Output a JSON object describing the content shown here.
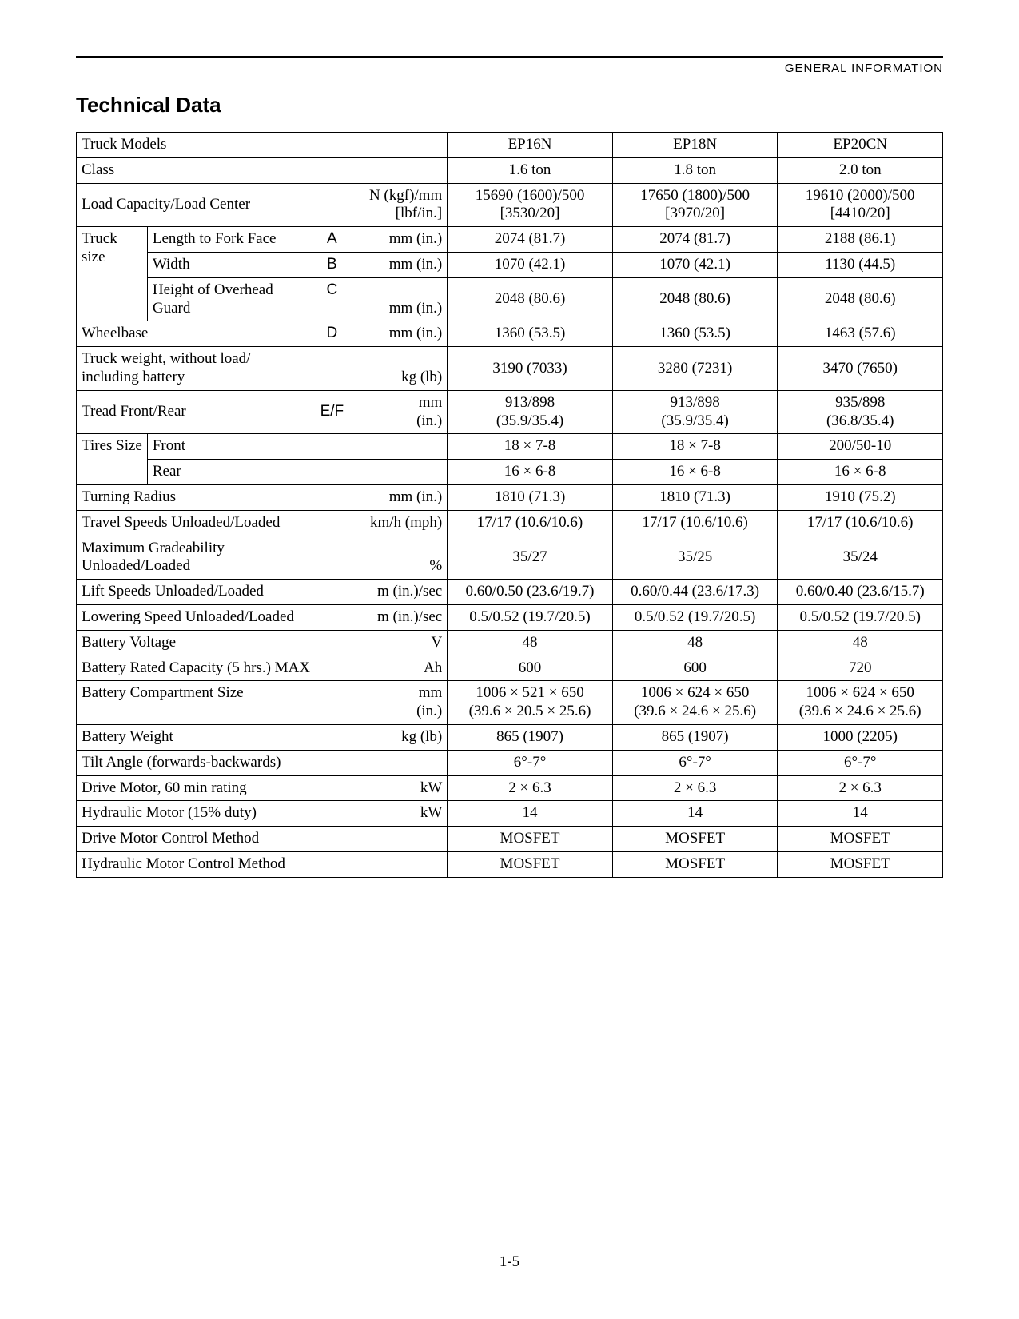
{
  "page": {
    "header_right": "GENERAL  INFORMATION",
    "title": "Technical Data",
    "footer": "1-5",
    "background_color": "#ffffff",
    "text_color": "#000000",
    "rule_color": "#000000",
    "model_names": [
      "EP16N",
      "EP18N",
      "EP20CN"
    ]
  },
  "rows": {
    "truck_models": {
      "label": "Truck Models",
      "v": [
        "EP16N",
        "EP18N",
        "EP20CN"
      ]
    },
    "class": {
      "label": "Class",
      "v": [
        "1.6 ton",
        "1.8 ton",
        "2.0 ton"
      ]
    },
    "load_capacity": {
      "label": "Load Capacity/Load Center",
      "unit1": "N (kgf)/mm",
      "unit2": "[lbf/in.]",
      "v1": [
        "15690 (1600)/500",
        "17650 (1800)/500",
        "19610 (2000)/500"
      ],
      "v2": [
        "[3530/20]",
        "[3970/20]",
        "[4410/20]"
      ]
    },
    "truck_size_label": "Truck size",
    "length_fork": {
      "label": "Length to Fork Face",
      "code": "A",
      "unit": "mm (in.)",
      "v": [
        "2074 (81.7)",
        "2074 (81.7)",
        "2188 (86.1)"
      ]
    },
    "width": {
      "label": "Width",
      "code": "B",
      "unit": "mm (in.)",
      "v": [
        "1070 (42.1)",
        "1070 (42.1)",
        "1130 (44.5)"
      ]
    },
    "height_guard": {
      "label": "Height of Overhead Guard",
      "code": "C",
      "unit": "mm (in.)",
      "v": [
        "2048 (80.6)",
        "2048 (80.6)",
        "2048 (80.6)"
      ]
    },
    "wheelbase": {
      "label": "Wheelbase",
      "code": "D",
      "unit": "mm (in.)",
      "v": [
        "1360 (53.5)",
        "1360 (53.5)",
        "1463 (57.6)"
      ]
    },
    "truck_weight": {
      "label1": "Truck weight, without load/",
      "label2": "including battery",
      "unit": "kg (lb)",
      "v": [
        "3190 (7033)",
        "3280 (7231)",
        "3470 (7650)"
      ]
    },
    "tread": {
      "label": "Tread  Front/Rear",
      "code": "E/F",
      "unit1": "mm",
      "unit2": "(in.)",
      "v1": [
        "913/898",
        "913/898",
        "935/898"
      ],
      "v2": [
        "(35.9/35.4)",
        "(35.9/35.4)",
        "(36.8/35.4)"
      ]
    },
    "tires_size_label": "Tires Size",
    "tires_front": {
      "label": "Front",
      "v": [
        "18 × 7-8",
        "18 × 7-8",
        "200/50-10"
      ]
    },
    "tires_rear": {
      "label": "Rear",
      "v": [
        "16 × 6-8",
        "16 × 6-8",
        "16 × 6-8"
      ]
    },
    "turning_radius": {
      "label": "Turning Radius",
      "unit": "mm (in.)",
      "v": [
        "1810 (71.3)",
        "1810 (71.3)",
        "1910 (75.2)"
      ]
    },
    "travel_speeds": {
      "label": "Travel Speeds  Unloaded/Loaded",
      "unit": "km/h (mph)",
      "v": [
        "17/17 (10.6/10.6)",
        "17/17 (10.6/10.6)",
        "17/17 (10.6/10.6)"
      ]
    },
    "max_grade": {
      "label1": "Maximum Gradeability",
      "label2": "Unloaded/Loaded",
      "unit": "%",
      "v": [
        "35/27",
        "35/25",
        "35/24"
      ]
    },
    "lift_speeds": {
      "label": "Lift Speeds Unloaded/Loaded",
      "unit": "m (in.)/sec",
      "v": [
        "0.60/0.50 (23.6/19.7)",
        "0.60/0.44 (23.6/17.3)",
        "0.60/0.40 (23.6/15.7)"
      ]
    },
    "lowering_speed": {
      "label": "Lowering Speed Unloaded/Loaded",
      "unit": "m (in.)/sec",
      "v": [
        "0.5/0.52 (19.7/20.5)",
        "0.5/0.52 (19.7/20.5)",
        "0.5/0.52 (19.7/20.5)"
      ]
    },
    "battery_voltage": {
      "label": "Battery Voltage",
      "unit": "V",
      "v": [
        "48",
        "48",
        "48"
      ]
    },
    "battery_capacity": {
      "label": "Battery Rated Capacity (5 hrs.) MAX",
      "unit": "Ah",
      "v": [
        "600",
        "600",
        "720"
      ]
    },
    "battery_comp": {
      "label": "Battery Compartment Size",
      "unit1": "mm",
      "unit2": "(in.)",
      "v1": [
        "1006 × 521 × 650",
        "1006 × 624 × 650",
        "1006 × 624 × 650"
      ],
      "v2": [
        "(39.6 × 20.5 × 25.6)",
        "(39.6 × 24.6 × 25.6)",
        "(39.6 × 24.6 × 25.6)"
      ]
    },
    "battery_weight": {
      "label": "Battery Weight",
      "unit": "kg (lb)",
      "v": [
        "865 (1907)",
        "865 (1907)",
        "1000 (2205)"
      ]
    },
    "tilt_angle": {
      "label": "Tilt Angle (forwards-backwards)",
      "v": [
        "6°-7°",
        "6°-7°",
        "6°-7°"
      ]
    },
    "drive_motor": {
      "label": "Drive Motor, 60 min rating",
      "unit": "kW",
      "v": [
        "2 × 6.3",
        "2 × 6.3",
        "2 × 6.3"
      ]
    },
    "hyd_motor": {
      "label": "Hydraulic Motor (15% duty)",
      "unit": "kW",
      "v": [
        "14",
        "14",
        "14"
      ]
    },
    "drive_ctrl": {
      "label": "Drive Motor Control Method",
      "v": [
        "MOSFET",
        "MOSFET",
        "MOSFET"
      ]
    },
    "hyd_ctrl": {
      "label": "Hydraulic Motor Control Method",
      "v": [
        "MOSFET",
        "MOSFET",
        "MOSFET"
      ]
    }
  }
}
